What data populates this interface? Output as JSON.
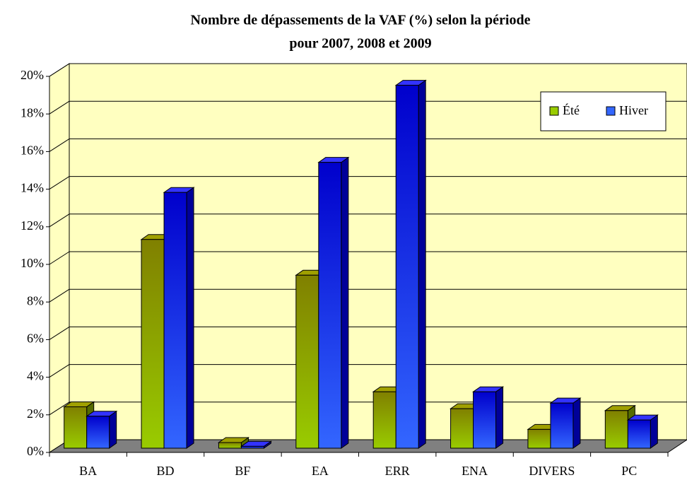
{
  "chart_data": {
    "type": "bar3d",
    "title": [
      "Nombre de dépassements de la VAF (%) selon la période",
      "pour 2007, 2008 et 2009"
    ],
    "categories": [
      "BA",
      "BD",
      "BF",
      "EA",
      "ERR",
      "ENA",
      "DIVERS",
      "PC"
    ],
    "series": [
      {
        "name": "Été",
        "color": "#99cc00",
        "values": [
          2.2,
          11.1,
          0.3,
          9.2,
          3.0,
          2.1,
          1.0,
          2.0
        ]
      },
      {
        "name": "Hiver",
        "color": "#3366ff",
        "values": [
          1.7,
          13.6,
          0.1,
          15.2,
          19.3,
          3.0,
          2.4,
          1.5
        ]
      }
    ],
    "ylim": [
      0,
      20
    ],
    "yticks": [
      {
        "value": 0,
        "label": "0%"
      },
      {
        "value": 2,
        "label": "2%"
      },
      {
        "value": 4,
        "label": "4%"
      },
      {
        "value": 6,
        "label": "6%"
      },
      {
        "value": 8,
        "label": "8%"
      },
      {
        "value": 10,
        "label": "10%"
      },
      {
        "value": 12,
        "label": "12%"
      },
      {
        "value": 14,
        "label": "14%"
      },
      {
        "value": 16,
        "label": "16%"
      },
      {
        "value": 18,
        "label": "18%"
      },
      {
        "value": 20,
        "label": "20%"
      }
    ],
    "grid": true,
    "legend": "top-right"
  }
}
